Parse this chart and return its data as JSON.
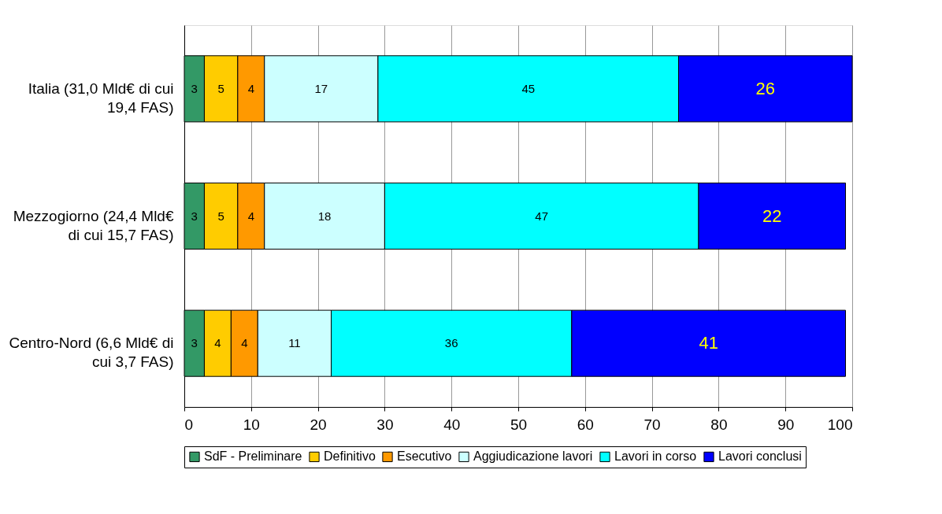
{
  "chart_data": {
    "type": "bar",
    "orientation": "horizontal",
    "stacked": true,
    "data_labels": true,
    "grid": "x",
    "legend": "bottom",
    "categories": [
      "Italia (31,0 Mld€ di cui\n19,4 FAS)",
      "Mezzogiorno (24,4 Mld€\ndi cui 15,7 FAS)",
      "Centro-Nord (6,6 Mld€ di\ncui 3,7 FAS)"
    ],
    "xlim": [
      0,
      100
    ],
    "xticks": [
      0,
      10,
      20,
      30,
      40,
      50,
      60,
      70,
      80,
      90,
      100
    ],
    "series": [
      {
        "name": "SdF - Preliminare",
        "color": "#339966",
        "values": [
          3,
          3,
          3
        ]
      },
      {
        "name": "Definitivo",
        "color": "#ffcc00",
        "values": [
          5,
          5,
          4
        ]
      },
      {
        "name": "Esecutivo",
        "color": "#ff9900",
        "values": [
          4,
          4,
          4
        ]
      },
      {
        "name": "Aggiudicazione lavori",
        "color": "#ccffff",
        "values": [
          17,
          18,
          11
        ]
      },
      {
        "name": "Lavori in corso",
        "color": "#00ffff",
        "values": [
          45,
          47,
          36
        ]
      },
      {
        "name": "Lavori conclusi",
        "color": "#0000ff",
        "values": [
          26,
          22,
          41
        ]
      }
    ]
  }
}
